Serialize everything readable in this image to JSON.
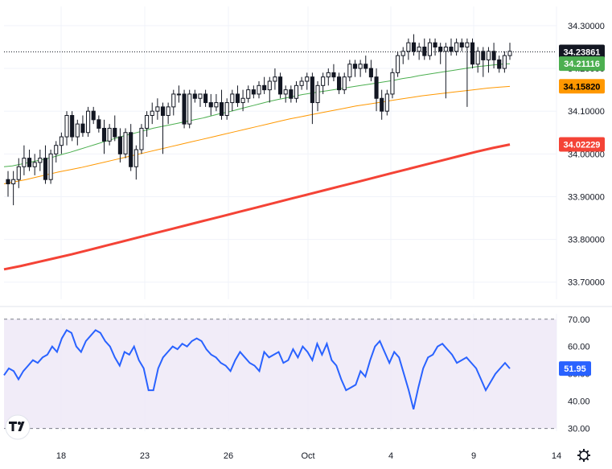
{
  "chart_data": [
    {
      "type": "candlestick",
      "panel": "price",
      "y_axis": {
        "ticks": [
          "34.30000",
          "34.20000",
          "34.10000",
          "34.00000",
          "33.90000",
          "33.80000",
          "33.70000"
        ],
        "ylim": [
          33.66,
          34.345
        ]
      },
      "x_axis": {
        "ticks": [
          "18",
          "23",
          "26",
          "Oct",
          "4",
          "9",
          "14"
        ]
      },
      "last_price": {
        "value": "34.23861",
        "color": "#131722",
        "text_color": "#ffffff"
      },
      "candles": [
        [
          33.94,
          33.96,
          33.9,
          33.93
        ],
        [
          33.93,
          33.96,
          33.88,
          33.94
        ],
        [
          33.94,
          33.99,
          33.92,
          33.97
        ],
        [
          33.97,
          34.02,
          33.95,
          33.99
        ],
        [
          33.99,
          34.01,
          33.96,
          33.97
        ],
        [
          33.97,
          34.0,
          33.95,
          33.98
        ],
        [
          33.98,
          34.01,
          33.96,
          33.99
        ],
        [
          33.99,
          34.02,
          33.93,
          33.94
        ],
        [
          33.94,
          34.01,
          33.93,
          34.0
        ],
        [
          34.0,
          34.03,
          33.98,
          34.02
        ],
        [
          34.02,
          34.05,
          34.0,
          34.04
        ],
        [
          34.04,
          34.1,
          34.02,
          34.09
        ],
        [
          34.09,
          34.1,
          34.03,
          34.04
        ],
        [
          34.04,
          34.08,
          34.02,
          34.07
        ],
        [
          34.07,
          34.09,
          34.04,
          34.05
        ],
        [
          34.05,
          34.11,
          34.04,
          34.1
        ],
        [
          34.1,
          34.11,
          34.07,
          34.08
        ],
        [
          34.08,
          34.09,
          34.05,
          34.06
        ],
        [
          34.06,
          34.08,
          34.0,
          34.03
        ],
        [
          34.03,
          34.07,
          34.02,
          34.06
        ],
        [
          34.06,
          34.09,
          34.03,
          34.04
        ],
        [
          34.04,
          34.06,
          33.98,
          34.0
        ],
        [
          34.0,
          34.06,
          33.99,
          34.05
        ],
        [
          34.05,
          34.07,
          33.96,
          33.97
        ],
        [
          33.97,
          34.02,
          33.94,
          34.01
        ],
        [
          34.01,
          34.07,
          34.0,
          34.06
        ],
        [
          34.06,
          34.1,
          34.04,
          34.09
        ],
        [
          34.09,
          34.12,
          34.07,
          34.1
        ],
        [
          34.1,
          34.13,
          34.08,
          34.11
        ],
        [
          34.11,
          34.12,
          34.0,
          34.09
        ],
        [
          34.09,
          34.12,
          34.07,
          34.11
        ],
        [
          34.11,
          34.15,
          34.09,
          34.14
        ],
        [
          34.14,
          34.16,
          34.12,
          34.14
        ],
        [
          34.14,
          34.15,
          34.06,
          34.07
        ],
        [
          34.07,
          34.15,
          34.06,
          34.14
        ],
        [
          34.14,
          34.15,
          34.12,
          34.13
        ],
        [
          34.13,
          34.14,
          34.11,
          34.14
        ],
        [
          34.14,
          34.15,
          34.11,
          34.12
        ],
        [
          34.12,
          34.14,
          34.09,
          34.11
        ],
        [
          34.11,
          34.14,
          34.1,
          34.12
        ],
        [
          34.12,
          34.15,
          34.08,
          34.09
        ],
        [
          34.09,
          34.13,
          34.08,
          34.12
        ],
        [
          34.12,
          34.15,
          34.1,
          34.14
        ],
        [
          34.14,
          34.16,
          34.11,
          34.12
        ],
        [
          34.12,
          34.15,
          34.1,
          34.13
        ],
        [
          34.13,
          34.16,
          34.12,
          34.15
        ],
        [
          34.15,
          34.16,
          34.13,
          34.14
        ],
        [
          34.14,
          34.17,
          34.13,
          34.16
        ],
        [
          34.16,
          34.18,
          34.14,
          34.15
        ],
        [
          34.15,
          34.18,
          34.12,
          34.17
        ],
        [
          34.17,
          34.2,
          34.15,
          34.18
        ],
        [
          34.18,
          34.19,
          34.13,
          34.14
        ],
        [
          34.14,
          34.16,
          34.12,
          34.15
        ],
        [
          34.15,
          34.16,
          34.12,
          34.13
        ],
        [
          34.13,
          34.17,
          34.12,
          34.16
        ],
        [
          34.16,
          34.18,
          34.15,
          34.17
        ],
        [
          34.17,
          34.19,
          34.15,
          34.18
        ],
        [
          34.18,
          34.19,
          34.07,
          34.12
        ],
        [
          34.12,
          34.17,
          34.1,
          34.16
        ],
        [
          34.16,
          34.19,
          34.14,
          34.18
        ],
        [
          34.18,
          34.2,
          34.16,
          34.19
        ],
        [
          34.19,
          34.21,
          34.17,
          34.18
        ],
        [
          34.18,
          34.19,
          34.14,
          34.15
        ],
        [
          34.15,
          34.19,
          34.14,
          34.18
        ],
        [
          34.18,
          34.22,
          34.17,
          34.21
        ],
        [
          34.21,
          34.22,
          34.18,
          34.2
        ],
        [
          34.2,
          34.22,
          34.18,
          34.21
        ],
        [
          34.21,
          34.23,
          34.19,
          34.2
        ],
        [
          34.2,
          34.22,
          34.17,
          34.18
        ],
        [
          34.18,
          34.2,
          34.1,
          34.13
        ],
        [
          34.13,
          34.15,
          34.08,
          34.1
        ],
        [
          34.1,
          34.15,
          34.09,
          34.14
        ],
        [
          34.14,
          34.2,
          34.13,
          34.19
        ],
        [
          34.19,
          34.24,
          34.18,
          34.23
        ],
        [
          34.23,
          34.25,
          34.21,
          34.24
        ],
        [
          34.24,
          34.27,
          34.22,
          34.26
        ],
        [
          34.26,
          34.28,
          34.23,
          34.24
        ],
        [
          34.24,
          34.26,
          34.22,
          34.25
        ],
        [
          34.25,
          34.27,
          34.22,
          34.23
        ],
        [
          34.23,
          34.27,
          34.22,
          34.26
        ],
        [
          34.26,
          34.27,
          34.23,
          34.25
        ],
        [
          34.25,
          34.26,
          34.21,
          34.24
        ],
        [
          34.24,
          34.26,
          34.13,
          34.25
        ],
        [
          34.25,
          34.27,
          34.23,
          34.24
        ],
        [
          34.24,
          34.27,
          34.23,
          34.26
        ],
        [
          34.26,
          34.27,
          34.24,
          34.25
        ],
        [
          34.25,
          34.27,
          34.11,
          34.26
        ],
        [
          34.26,
          34.27,
          34.2,
          34.21
        ],
        [
          34.21,
          34.25,
          34.19,
          34.24
        ],
        [
          34.24,
          34.25,
          34.18,
          34.22
        ],
        [
          34.22,
          34.25,
          34.19,
          34.24
        ],
        [
          34.24,
          34.26,
          34.2,
          34.22
        ],
        [
          34.22,
          34.23,
          34.19,
          34.2
        ],
        [
          34.2,
          34.24,
          34.19,
          34.23
        ],
        [
          34.23,
          34.26,
          34.22,
          34.24
        ]
      ],
      "moving_averages": [
        {
          "color": "#4caf50",
          "width": 1,
          "last": "34.21116",
          "tag_color": "#4caf50",
          "values": [
            33.97,
            33.972,
            33.976,
            33.98,
            33.984,
            33.988,
            33.993,
            33.999,
            34.004,
            34.01,
            34.016,
            34.022,
            34.028,
            34.034,
            34.04,
            34.045,
            34.05,
            34.055,
            34.06,
            34.064,
            34.068,
            34.072,
            34.076,
            34.08,
            34.084,
            34.089,
            34.094,
            34.098,
            34.103,
            34.108,
            34.113,
            34.118,
            34.123,
            34.127,
            34.131,
            34.135,
            34.139,
            34.142,
            34.145,
            34.148,
            34.151,
            34.154,
            34.157,
            34.16,
            34.163,
            34.166,
            34.169,
            34.172,
            34.176,
            34.179,
            34.183,
            34.186,
            34.189,
            34.192,
            34.195,
            34.198,
            34.201,
            34.204,
            34.206,
            34.208,
            34.21,
            34.211
          ]
        },
        {
          "color": "#ff9800",
          "width": 1,
          "last": "34.15820",
          "tag_color": "#ff9800",
          "values": [
            33.93,
            33.935,
            33.94,
            33.946,
            33.952,
            33.958,
            33.963,
            33.968,
            33.974,
            33.98,
            33.986,
            33.992,
            33.998,
            34.004,
            34.01,
            34.016,
            34.022,
            34.028,
            34.034,
            34.04,
            34.046,
            34.052,
            34.058,
            34.064,
            34.07,
            34.076,
            34.082,
            34.087,
            34.092,
            34.097,
            34.102,
            34.107,
            34.112,
            34.116,
            34.12,
            34.124,
            34.128,
            34.132,
            34.136,
            34.139,
            34.142,
            34.145,
            34.148,
            34.151,
            34.154,
            34.156,
            34.158
          ]
        },
        {
          "color": "#f44336",
          "width": 3,
          "last": "34.02229",
          "tag_color": "#f44336",
          "values": [
            33.73,
            33.738,
            33.747,
            33.756,
            33.765,
            33.775,
            33.785,
            33.795,
            33.805,
            33.815,
            33.825,
            33.835,
            33.845,
            33.855,
            33.865,
            33.875,
            33.885,
            33.895,
            33.905,
            33.915,
            33.925,
            33.935,
            33.945,
            33.955,
            33.965,
            33.975,
            33.985,
            33.995,
            34.005,
            34.014,
            34.022
          ]
        }
      ]
    },
    {
      "type": "line",
      "panel": "rsi",
      "y_axis": {
        "ticks": [
          "70.00",
          "60.00",
          "50.00",
          "40.00",
          "30.00"
        ],
        "ylim": [
          29,
          72
        ]
      },
      "last_value": {
        "value": "51.95",
        "color": "#2962ff"
      },
      "series": [
        {
          "color": "#2962ff",
          "values": [
            49.5,
            52,
            51,
            48,
            51,
            53,
            55,
            54,
            56,
            57,
            60,
            58,
            63,
            66,
            65,
            60,
            58,
            62,
            64,
            66,
            65,
            62,
            60,
            56,
            53,
            58,
            57,
            60,
            55,
            52,
            44,
            44,
            52,
            56,
            58,
            60,
            59,
            61,
            60,
            62,
            63,
            62,
            59,
            57,
            56,
            54,
            53,
            51,
            55,
            58,
            56,
            54,
            53,
            51,
            58,
            56,
            57,
            58,
            54,
            55,
            59,
            56,
            60,
            58,
            55,
            61,
            57,
            61,
            55,
            53,
            48,
            44,
            45,
            46,
            51,
            49,
            55,
            60,
            62,
            58,
            54,
            58,
            56,
            50,
            44,
            37,
            45,
            52,
            56,
            57,
            60,
            61,
            59,
            57,
            54,
            55,
            56,
            54,
            52,
            48,
            44,
            47,
            50,
            52,
            54,
            51.95
          ]
        }
      ]
    }
  ],
  "chart_labels": {
    "y_ticks_price": [
      "34.30000",
      "34.20000",
      "34.10000",
      "34.00000",
      "33.90000",
      "33.80000",
      "33.70000"
    ],
    "y_ticks_rsi": [
      "70.00",
      "60.00",
      "50.00",
      "40.00",
      "30.00"
    ],
    "x_ticks": [
      "18",
      "23",
      "26",
      "Oct",
      "4",
      "9",
      "14"
    ]
  },
  "branding": {
    "logo_text": "TV",
    "settings_icon": "gear-icon"
  }
}
